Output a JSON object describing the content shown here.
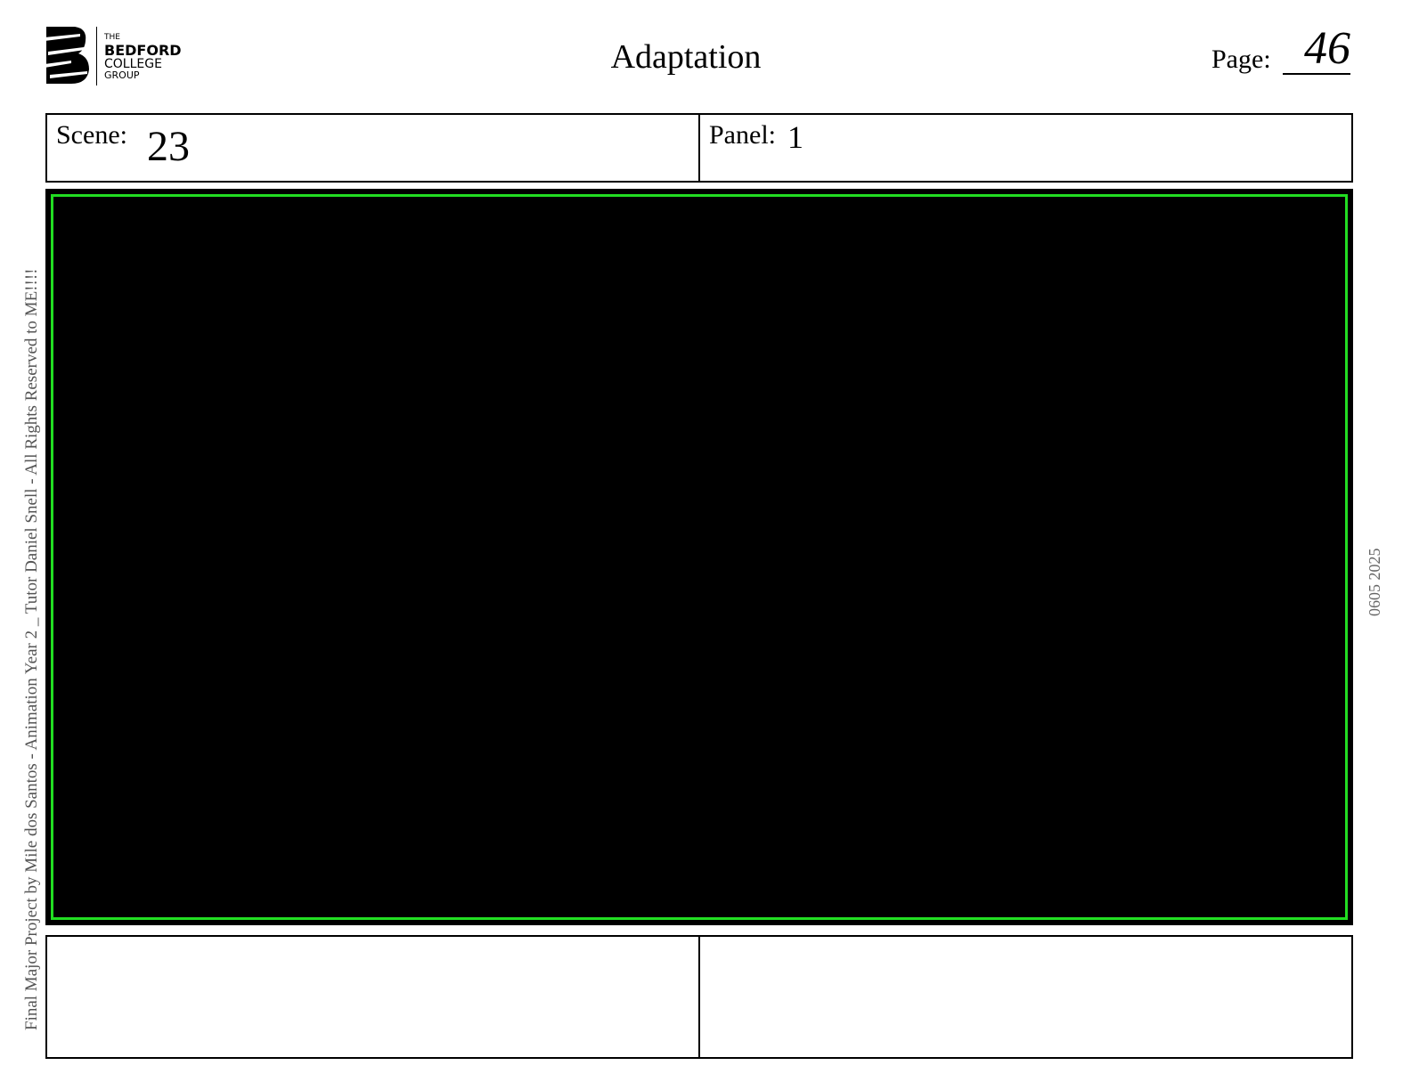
{
  "logo": {
    "line1": "THE",
    "line2": "BEDFORD",
    "line3": "COLLEGE",
    "line4": "GROUP"
  },
  "header": {
    "title": "Adaptation",
    "page_label": "Page:",
    "page_number": "46"
  },
  "info": {
    "scene_label": "Scene:",
    "scene_value": "23",
    "panel_label": "Panel:",
    "panel_value": "1"
  },
  "frame": {
    "background": "#000000",
    "border_color": "#22dd22"
  },
  "side": {
    "left_text": "Final Major Project by Mile dos Santos - Animation Year 2 _ Tutor Daniel Snell - All Rights Reserved to ME!!!!",
    "right_text": "0605 2025"
  }
}
